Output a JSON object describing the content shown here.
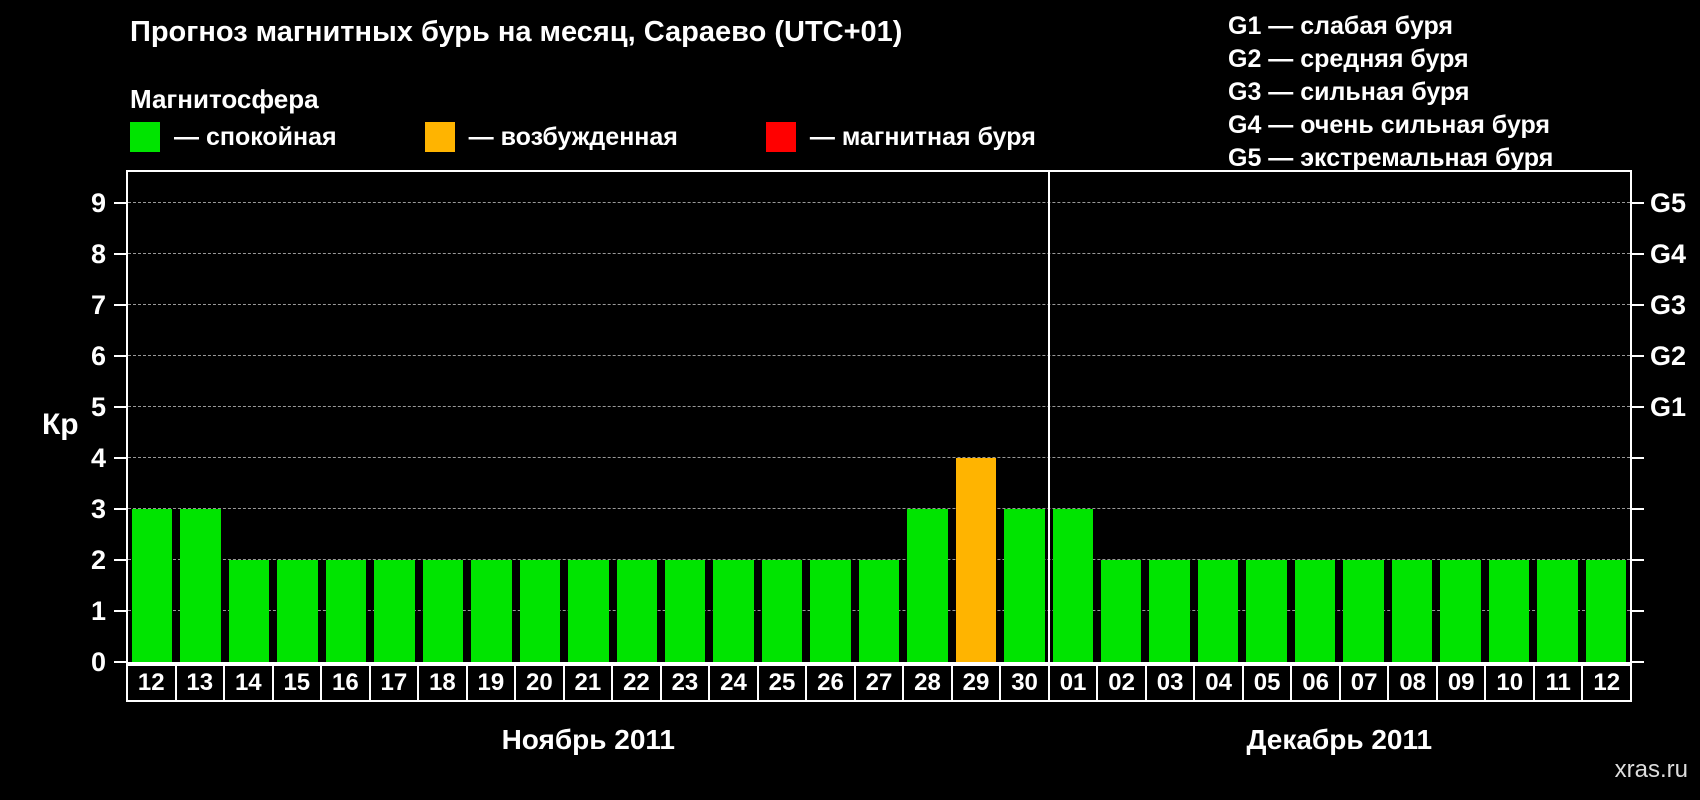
{
  "title": "Прогноз магнитных бурь на месяц, Сараево (UTC+01)",
  "legend": {
    "heading": "Магнитосфера",
    "items": [
      {
        "name": "quiet",
        "label": "— спокойная",
        "color": "#00e400"
      },
      {
        "name": "excited",
        "label": "— возбужденная",
        "color": "#ffb400"
      },
      {
        "name": "storm",
        "label": "— магнитная буря",
        "color": "#ff0000"
      }
    ]
  },
  "storm_scale": [
    {
      "label": "G1 — слабая буря"
    },
    {
      "label": "G2 — средняя буря"
    },
    {
      "label": "G3 — сильная буря"
    },
    {
      "label": "G4 — очень сильная буря"
    },
    {
      "label": "G5 — экстремальная буря"
    }
  ],
  "watermark": "xras.ru",
  "chart_data": {
    "type": "bar",
    "title": "Прогноз магнитных бурь на месяц, Сараево (UTC+01)",
    "ylabel": "Кр",
    "ylim": [
      0,
      9
    ],
    "yticks": [
      0,
      1,
      2,
      3,
      4,
      5,
      6,
      7,
      8,
      9
    ],
    "grid": "horizontal-dashed",
    "right_axis_ticks": [
      {
        "label": "G1",
        "value": 5
      },
      {
        "label": "G2",
        "value": 6
      },
      {
        "label": "G3",
        "value": 7
      },
      {
        "label": "G4",
        "value": 8
      },
      {
        "label": "G5",
        "value": 9
      }
    ],
    "color_rules": {
      "quiet_max_kp": 3,
      "excited_max_kp": 4,
      "quiet_color": "#00e400",
      "excited_color": "#ffb400",
      "storm_color": "#ff0000"
    },
    "months": [
      {
        "label": "Ноябрь 2011",
        "days": [
          "12",
          "13",
          "14",
          "15",
          "16",
          "17",
          "18",
          "19",
          "20",
          "21",
          "22",
          "23",
          "24",
          "25",
          "26",
          "27",
          "28",
          "29",
          "30"
        ]
      },
      {
        "label": "Декабрь 2011",
        "days": [
          "01",
          "02",
          "03",
          "04",
          "05",
          "06",
          "07",
          "08",
          "09",
          "10",
          "11",
          "12"
        ]
      }
    ],
    "categories": [
      "12",
      "13",
      "14",
      "15",
      "16",
      "17",
      "18",
      "19",
      "20",
      "21",
      "22",
      "23",
      "24",
      "25",
      "26",
      "27",
      "28",
      "29",
      "30",
      "01",
      "02",
      "03",
      "04",
      "05",
      "06",
      "07",
      "08",
      "09",
      "10",
      "11",
      "12"
    ],
    "values": [
      3,
      3,
      2,
      2,
      2,
      2,
      2,
      2,
      2,
      2,
      2,
      2,
      2,
      2,
      2,
      2,
      3,
      4,
      3,
      3,
      2,
      2,
      2,
      2,
      2,
      2,
      2,
      2,
      2,
      2,
      2
    ]
  }
}
